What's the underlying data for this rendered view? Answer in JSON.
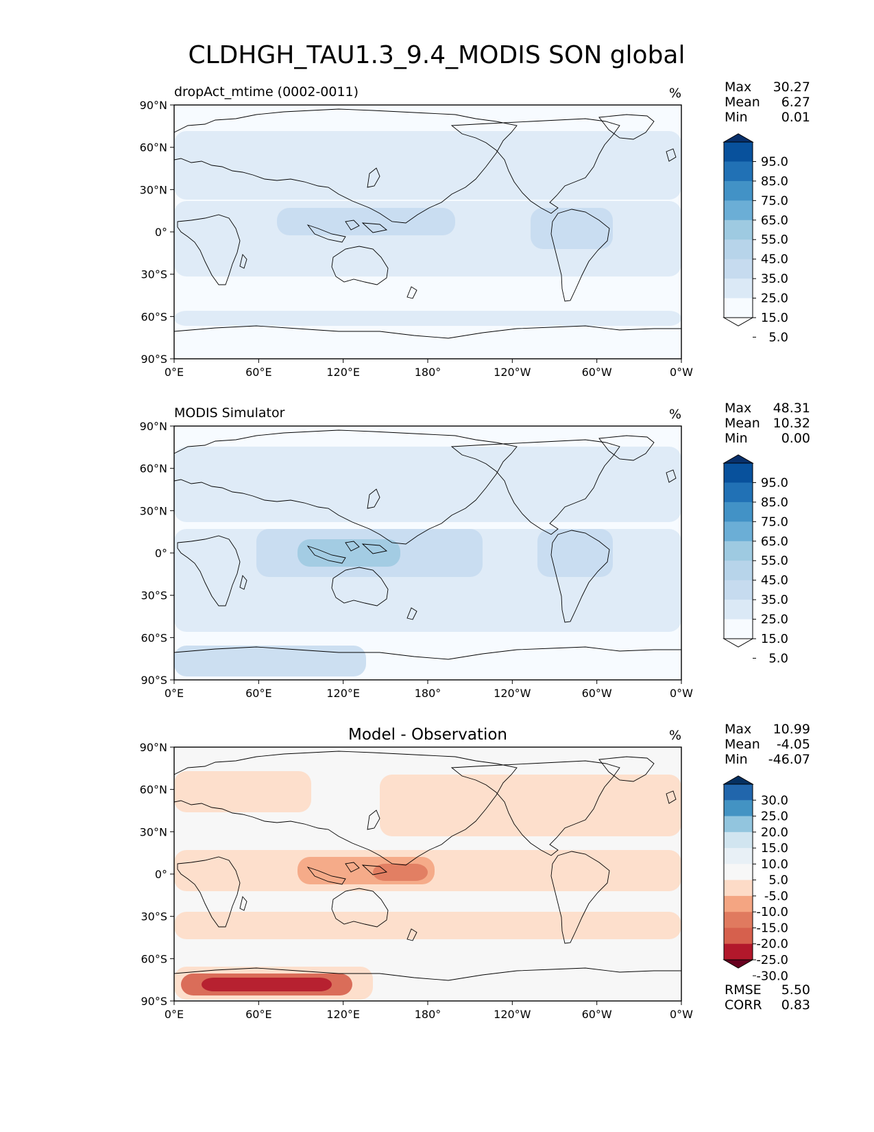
{
  "title": "CLDHGH_TAU1.3_9.4_MODIS SON global",
  "chart_data": [
    {
      "type": "heatmap",
      "left_title": "dropAct_mtime (0002-0011)",
      "center_title": "",
      "units": "%",
      "xticks": [
        "0°E",
        "60°E",
        "120°E",
        "180°",
        "120°W",
        "60°W",
        "0°W"
      ],
      "yticks": [
        "90°N",
        "60°N",
        "30°N",
        "0°",
        "30°S",
        "60°S",
        "90°S"
      ],
      "stats": [
        {
          "label": "Max",
          "value": "30.27"
        },
        {
          "label": "Mean",
          "value": "6.27"
        },
        {
          "label": "Min",
          "value": "0.01"
        }
      ],
      "colorbar": {
        "labels": [
          "95.0",
          "85.0",
          "75.0",
          "65.0",
          "55.0",
          "45.0",
          "35.0",
          "25.0",
          "15.0",
          "5.0"
        ],
        "colors": [
          "#08306b",
          "#08519c",
          "#2171b5",
          "#4292c6",
          "#6baed6",
          "#9ecae1",
          "#b7d4ea",
          "#c6dbef",
          "#dbe9f6",
          "#f7fbff",
          "#ffffff"
        ]
      }
    },
    {
      "type": "heatmap",
      "left_title": "MODIS Simulator",
      "center_title": "",
      "units": "%",
      "xticks": [
        "0°E",
        "60°E",
        "120°E",
        "180°",
        "120°W",
        "60°W",
        "0°W"
      ],
      "yticks": [
        "90°N",
        "60°N",
        "30°N",
        "0°",
        "30°S",
        "60°S",
        "90°S"
      ],
      "stats": [
        {
          "label": "Max",
          "value": "48.31"
        },
        {
          "label": "Mean",
          "value": "10.32"
        },
        {
          "label": "Min",
          "value": "0.00"
        }
      ],
      "colorbar": {
        "labels": [
          "95.0",
          "85.0",
          "75.0",
          "65.0",
          "55.0",
          "45.0",
          "35.0",
          "25.0",
          "15.0",
          "5.0"
        ],
        "colors": [
          "#08306b",
          "#08519c",
          "#2171b5",
          "#4292c6",
          "#6baed6",
          "#9ecae1",
          "#b7d4ea",
          "#c6dbef",
          "#dbe9f6",
          "#f7fbff",
          "#ffffff"
        ]
      }
    },
    {
      "type": "heatmap",
      "left_title": "",
      "center_title": "Model - Observation",
      "units": "%",
      "xticks": [
        "0°E",
        "60°E",
        "120°E",
        "180°",
        "120°W",
        "60°W",
        "0°W"
      ],
      "yticks": [
        "90°N",
        "60°N",
        "30°N",
        "0°",
        "30°S",
        "60°S",
        "90°S"
      ],
      "stats": [
        {
          "label": "Max",
          "value": "10.99"
        },
        {
          "label": "Mean",
          "value": "-4.05"
        },
        {
          "label": "Min",
          "value": "-46.07"
        }
      ],
      "extra_stats": [
        {
          "label": "RMSE",
          "value": "5.50"
        },
        {
          "label": "CORR",
          "value": "0.83"
        }
      ],
      "colorbar": {
        "labels": [
          "30.0",
          "25.0",
          "20.0",
          "15.0",
          "10.0",
          "5.0",
          "-5.0",
          "-10.0",
          "-15.0",
          "-20.0",
          "-25.0",
          "-30.0"
        ],
        "colors": [
          "#053061",
          "#2166ac",
          "#4393c3",
          "#92c5de",
          "#d1e5f0",
          "#e8f0f6",
          "#f7f7f7",
          "#fddbc7",
          "#f4a582",
          "#e07a5f",
          "#d6604d",
          "#b2182b",
          "#67001f"
        ]
      }
    }
  ]
}
